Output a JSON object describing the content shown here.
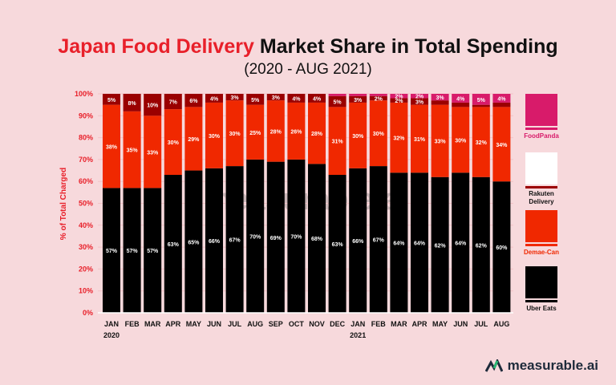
{
  "title_highlight": "Japan Food Delivery",
  "title_rest": " Market Share in Total Spending",
  "subtitle": "(2020 - AUG 2021)",
  "watermark": "measurable.ai",
  "brand": "measurable.ai",
  "chart_data": {
    "type": "bar",
    "stacked": true,
    "ylabel": "% of Total Charged",
    "ylim": [
      0,
      100
    ],
    "yticks": [
      "0%",
      "10%",
      "20%",
      "30%",
      "40%",
      "50%",
      "60%",
      "70%",
      "80%",
      "90%",
      "100%"
    ],
    "categories": [
      "JAN",
      "FEB",
      "MAR",
      "APR",
      "MAY",
      "JUN",
      "JUL",
      "AUG",
      "SEP",
      "OCT",
      "NOV",
      "DEC",
      "JAN",
      "FEB",
      "MAR",
      "APR",
      "MAY",
      "JUN",
      "JUL",
      "AUG"
    ],
    "year_labels": {
      "0": "2020",
      "12": "2021"
    },
    "legend_position": "right",
    "series": [
      {
        "name": "Uber Eats",
        "color": "#000000",
        "values": [
          57,
          57,
          57,
          63,
          65,
          66,
          67,
          70,
          69,
          70,
          68,
          63,
          66,
          67,
          64,
          64,
          62,
          64,
          62,
          60
        ],
        "labels": [
          "57%",
          "57%",
          "57%",
          "63%",
          "65%",
          "66%",
          "67%",
          "70%",
          "69%",
          "70%",
          "68%",
          "63%",
          "66%",
          "67%",
          "64%",
          "64%",
          "62%",
          "64%",
          "62%",
          "60%"
        ]
      },
      {
        "name": "Demae-Can",
        "color": "#f02800",
        "values": [
          38,
          35,
          33,
          30,
          29,
          30,
          30,
          25,
          28,
          26,
          28,
          31,
          30,
          30,
          32,
          31,
          33,
          30,
          32,
          34
        ],
        "labels": [
          "38%",
          "35%",
          "33%",
          "30%",
          "29%",
          "30%",
          "30%",
          "25%",
          "28%",
          "26%",
          "28%",
          "31%",
          "30%",
          "30%",
          "32%",
          "31%",
          "33%",
          "30%",
          "32%",
          "34%"
        ]
      },
      {
        "name": "Rakuten Delivery",
        "color": "#9a0000",
        "values": [
          5,
          8,
          10,
          7,
          6,
          4,
          3,
          5,
          3,
          4,
          4,
          5,
          3,
          2,
          2,
          3,
          2,
          2,
          1,
          2
        ],
        "labels": [
          "5%",
          "8%",
          "10%",
          "7%",
          "6%",
          "4%",
          "3%",
          "5%",
          "3%",
          "4%",
          "4%",
          "5%",
          "3%",
          "2%",
          "2%",
          "3%",
          "",
          "",
          "",
          ""
        ]
      },
      {
        "name": "FoodPanda",
        "color": "#d81b6a",
        "values": [
          0,
          0,
          0,
          0,
          0,
          0,
          0,
          0,
          0,
          0,
          0,
          1,
          1,
          1,
          2,
          2,
          3,
          4,
          5,
          4
        ],
        "labels": [
          "",
          "",
          "",
          "",
          "",
          "",
          "",
          "",
          "",
          "",
          "",
          "",
          "",
          "",
          "2%",
          "2%",
          "3%",
          "4%",
          "5%",
          "4%"
        ]
      }
    ]
  }
}
